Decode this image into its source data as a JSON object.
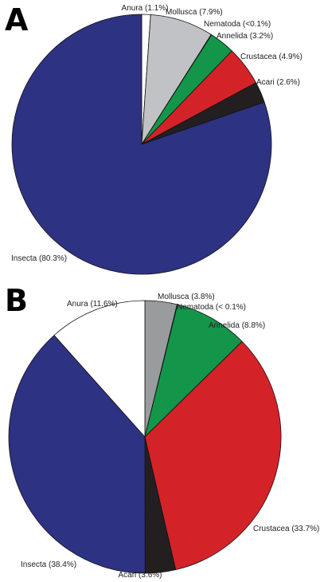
{
  "chart_data": [
    {
      "type": "pie",
      "panel_label": "A",
      "slices": [
        {
          "name": "Anura",
          "label": "Anura (1.1%)",
          "value": 1.1,
          "color": "#ffffff"
        },
        {
          "name": "Mollusca",
          "label": "Mollusca (7.9%)",
          "value": 7.9,
          "color": "#c0c2c6"
        },
        {
          "name": "Nematoda",
          "label": "Nematoda (<0.1%)",
          "value": 0.05,
          "color": "#1b1b1b"
        },
        {
          "name": "Annelida",
          "label": "Annelida (3.2%)",
          "value": 3.2,
          "color": "#14964a"
        },
        {
          "name": "Crustacea",
          "label": "Crustacea (4.9%)",
          "value": 4.9,
          "color": "#d42229"
        },
        {
          "name": "Acari",
          "label": "Acari (2.6%)",
          "value": 2.6,
          "color": "#231f20"
        },
        {
          "name": "Insecta",
          "label": "Insecta (80.3%)",
          "value": 80.3,
          "color": "#2e3283"
        }
      ]
    },
    {
      "type": "pie",
      "panel_label": "B",
      "slices": [
        {
          "name": "Mollusca",
          "label": "Mollusca (3.8%)",
          "value": 3.8,
          "color": "#9a9b9f"
        },
        {
          "name": "Nematoda",
          "label": "Nematoda (< 0.1%)",
          "value": 0.05,
          "color": "#1b1b1b"
        },
        {
          "name": "Annelida",
          "label": "Annelida (8.8%)",
          "value": 8.8,
          "color": "#14964a"
        },
        {
          "name": "Crustacea",
          "label": "Crustacea (33.7%)",
          "value": 33.7,
          "color": "#d42229"
        },
        {
          "name": "Acari",
          "label": "Acari (3.6%)",
          "value": 3.6,
          "color": "#231f20"
        },
        {
          "name": "Insecta",
          "label": "Insecta (38.4%)",
          "value": 38.4,
          "color": "#2e3283"
        },
        {
          "name": "Anura",
          "label": "Anura (11.6%)",
          "value": 11.6,
          "color": "#ffffff"
        }
      ]
    }
  ]
}
